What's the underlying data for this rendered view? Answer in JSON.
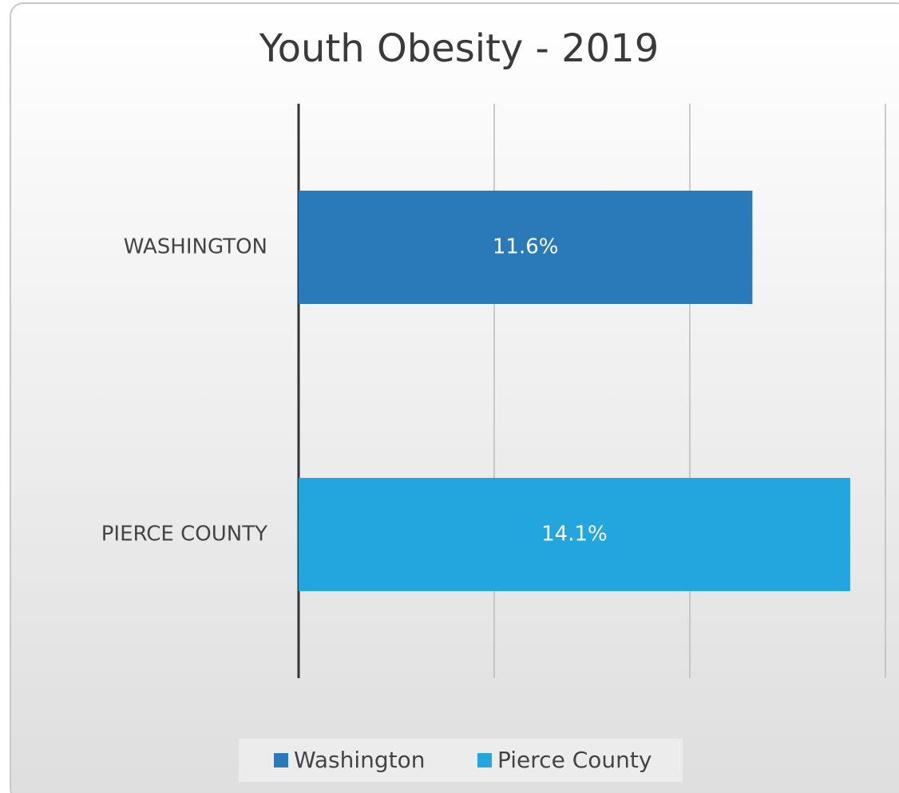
{
  "chart_data": {
    "type": "hbar",
    "title": "Youth Obesity - 2019",
    "categories": [
      "WASHINGTON",
      "PIERCE COUNTY"
    ],
    "series": [
      {
        "name": "Washington",
        "color": "#2a7aba",
        "values": [
          11.6,
          null
        ],
        "value_labels": [
          "11.6%",
          null
        ]
      },
      {
        "name": "Pierce County",
        "color": "#23a6de",
        "values": [
          null,
          14.1
        ],
        "value_labels": [
          null,
          "14.1%"
        ]
      }
    ],
    "xlim": [
      0,
      15
    ],
    "xticks": [
      0,
      5,
      10,
      15
    ],
    "grid": true,
    "legend": "bottom"
  }
}
